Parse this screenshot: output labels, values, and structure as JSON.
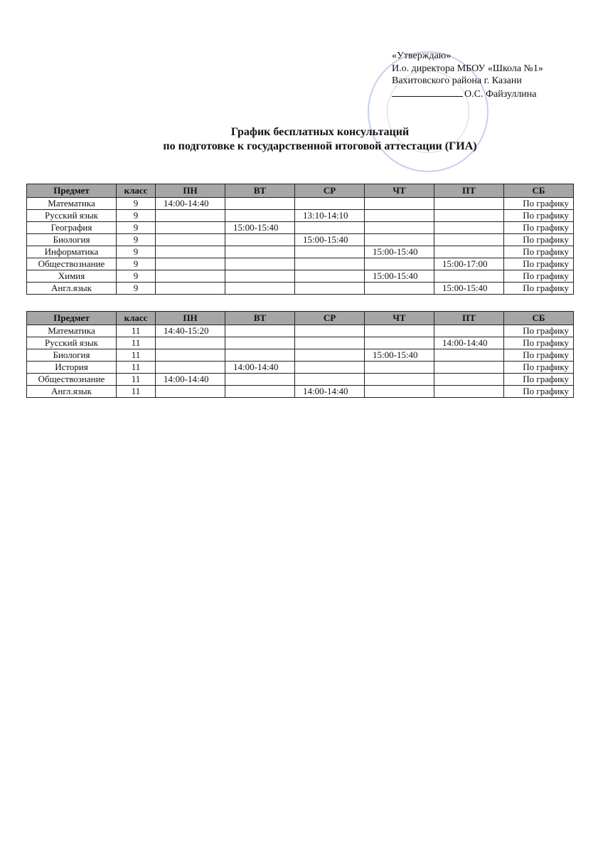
{
  "approval": [
    "«Утверждаю»",
    "И.о. директора МБОУ «Школа №1»",
    "Вахитовского района г. Казани",
    "О.С. Файзуллина"
  ],
  "title": [
    "График бесплатных консультаций",
    "по подготовке к государственной итоговой аттестации (ГИА)"
  ],
  "tables": [
    {
      "header": [
        "Предмет",
        "класс",
        "ПН",
        "ВТ",
        "СР",
        "ЧТ",
        "ПТ",
        "СБ"
      ],
      "rows": [
        [
          "Математика",
          "9",
          "14:00-14:40",
          null,
          null,
          null,
          null,
          "По графику"
        ],
        [
          "Русский язык",
          "9",
          null,
          null,
          "13:10-14:10",
          null,
          null,
          "По графику"
        ],
        [
          "География",
          "9",
          null,
          "15:00-15:40",
          null,
          null,
          null,
          "По графику"
        ],
        [
          "Биология",
          "9",
          null,
          null,
          "15:00-15:40",
          null,
          null,
          "По графику"
        ],
        [
          "Информатика",
          "9",
          null,
          null,
          null,
          "15:00-15:40",
          null,
          "По графику"
        ],
        [
          "Обществознание",
          "9",
          null,
          null,
          null,
          null,
          "15:00-17:00",
          "По графику"
        ],
        [
          "Химия",
          "9",
          null,
          null,
          null,
          "15:00-15:40",
          null,
          "По графику"
        ],
        [
          "Англ.язык",
          "9",
          null,
          null,
          null,
          null,
          "15:00-15:40",
          "По графику"
        ]
      ]
    },
    {
      "header": [
        "Предмет",
        "класс",
        "ПН",
        "ВТ",
        "СР",
        "ЧТ",
        "ПТ",
        "СБ"
      ],
      "rows": [
        [
          "Математика",
          "11",
          "14:40-15:20",
          null,
          null,
          null,
          null,
          "По графику"
        ],
        [
          "Русский язык",
          "11",
          null,
          null,
          null,
          null,
          "14:00-14:40",
          "По графику"
        ],
        [
          "Биология",
          "11",
          null,
          null,
          null,
          "15:00-15:40",
          null,
          "По графику"
        ],
        [
          "История",
          "11",
          null,
          "14:00-14:40",
          null,
          null,
          null,
          "По графику"
        ],
        [
          "Обществознание",
          "11",
          "14:00-14:40",
          null,
          null,
          null,
          null,
          "По графику"
        ],
        [
          "Англ.язык",
          "11",
          null,
          null,
          "14:00-14:40",
          null,
          null,
          "По графику"
        ]
      ]
    }
  ]
}
